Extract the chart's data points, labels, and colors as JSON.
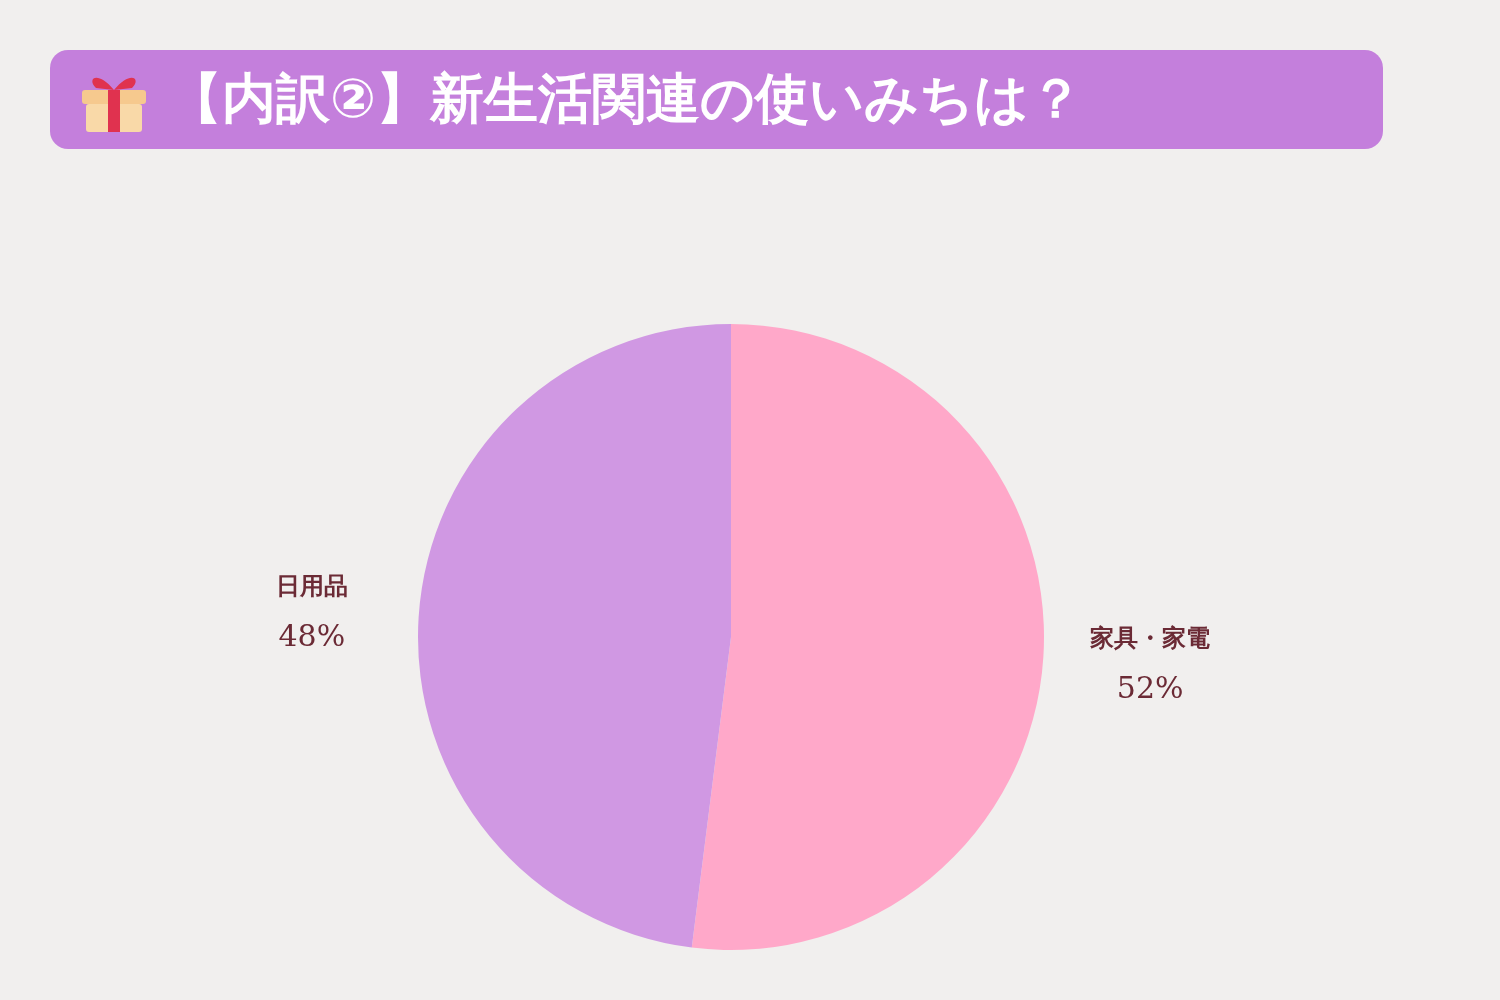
{
  "chart_data": {
    "type": "pie",
    "title": "【内訳②】新生活関連の使いみちは？",
    "categories": [
      "家具・家電",
      "日用品"
    ],
    "values": [
      52,
      48
    ],
    "value_labels": [
      "52%",
      "48%"
    ],
    "colors": [
      "#ffa8c9",
      "#d098e3"
    ]
  }
}
